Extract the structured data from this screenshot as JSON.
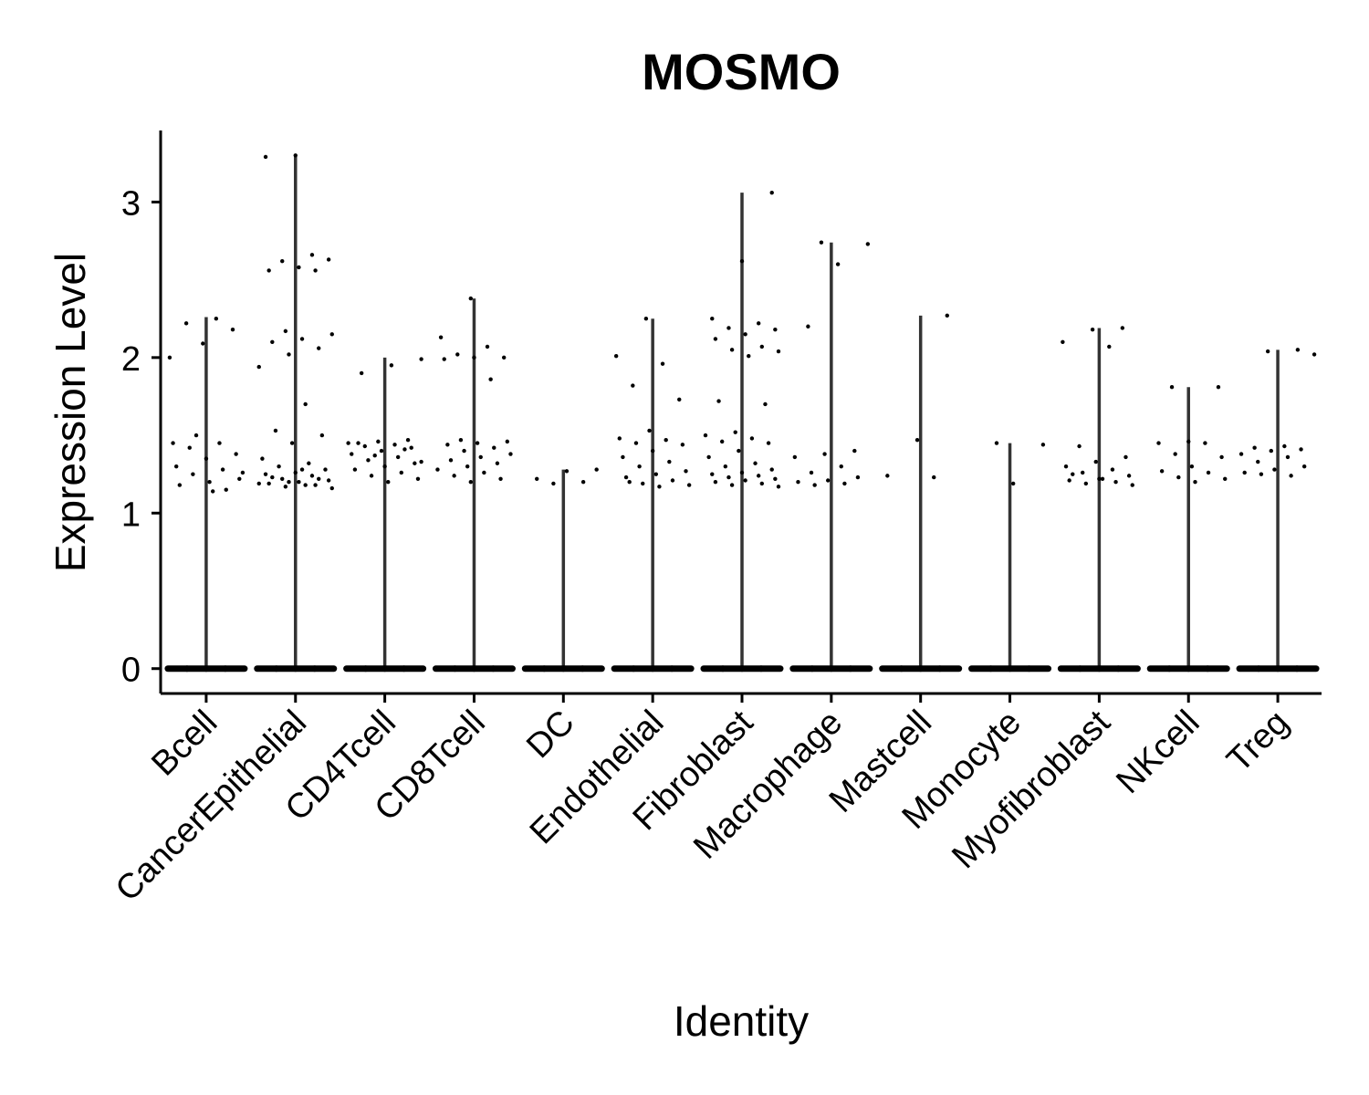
{
  "chart_data": {
    "type": "violin",
    "title": "MOSMO",
    "x_label": "Identity",
    "y_label": "Expression Level",
    "categories": [
      "Bcell",
      "CancerEpithelial",
      "CD4Tcell",
      "CD8Tcell",
      "DC",
      "Endothelial",
      "Fibroblast",
      "Macrophage",
      "Mastcell",
      "Monocyte",
      "Myofibroblast",
      "NKcell",
      "Treg"
    ],
    "values": [
      2.26,
      3.3,
      2.0,
      2.38,
      1.28,
      2.25,
      3.06,
      2.74,
      2.27,
      1.45,
      2.19,
      1.81,
      2.05
    ],
    "points": [
      [
        2.0,
        2.25,
        2.22,
        2.18,
        2.09,
        1.45,
        1.45,
        1.42,
        1.38,
        1.35,
        1.3,
        1.28,
        1.25,
        1.22,
        1.2,
        1.18,
        1.15,
        1.5,
        1.26,
        1.14,
        0,
        0,
        0,
        0
      ],
      [
        3.3,
        3.29,
        2.66,
        2.62,
        2.63,
        2.58,
        2.56,
        2.56,
        2.17,
        2.15,
        2.12,
        2.1,
        2.06,
        2.02,
        1.94,
        1.7,
        1.53,
        1.5,
        1.45,
        1.35,
        1.32,
        1.3,
        1.28,
        1.26,
        1.25,
        1.24,
        1.22,
        1.21,
        1.2,
        1.19,
        1.18,
        1.17,
        1.16,
        1.28,
        1.23,
        1.22,
        1.2,
        1.19,
        1.18,
        0,
        0,
        0,
        0
      ],
      [
        1.99,
        1.95,
        1.9,
        1.47,
        1.46,
        1.45,
        1.44,
        1.43,
        1.42,
        1.4,
        1.38,
        1.36,
        1.34,
        1.32,
        1.3,
        1.28,
        1.26,
        1.24,
        1.22,
        1.2,
        1.45,
        1.41,
        1.37,
        1.33,
        0,
        0,
        0,
        0
      ],
      [
        2.38,
        2.13,
        2.07,
        2.02,
        2.0,
        2.0,
        1.99,
        1.86,
        1.47,
        1.46,
        1.45,
        1.44,
        1.42,
        1.4,
        1.38,
        1.36,
        1.34,
        1.32,
        1.3,
        1.28,
        1.26,
        1.24,
        1.22,
        1.2,
        0,
        0,
        0,
        0
      ],
      [
        1.28,
        1.27,
        1.22,
        1.2,
        1.19,
        0,
        0,
        0,
        0
      ],
      [
        2.25,
        2.01,
        1.96,
        1.82,
        1.73,
        1.53,
        1.48,
        1.47,
        1.45,
        1.44,
        1.4,
        1.36,
        1.33,
        1.3,
        1.27,
        1.25,
        1.23,
        1.21,
        1.19,
        1.18,
        1.17,
        1.2,
        0,
        0,
        0,
        0
      ],
      [
        3.06,
        2.62,
        2.25,
        2.22,
        2.19,
        2.18,
        2.15,
        2.12,
        2.07,
        2.05,
        2.04,
        2.01,
        1.72,
        1.7,
        1.52,
        1.5,
        1.48,
        1.46,
        1.45,
        1.4,
        1.36,
        1.32,
        1.3,
        1.28,
        1.26,
        1.25,
        1.24,
        1.23,
        1.22,
        1.21,
        1.2,
        1.19,
        1.18,
        1.17,
        0,
        0,
        0,
        0
      ],
      [
        2.74,
        2.73,
        2.6,
        2.2,
        1.4,
        1.38,
        1.36,
        1.3,
        1.26,
        1.23,
        1.21,
        1.2,
        1.19,
        1.18,
        0,
        0,
        0,
        0
      ],
      [
        2.27,
        1.47,
        1.24,
        1.23,
        0,
        0,
        0,
        0
      ],
      [
        1.45,
        1.44,
        1.19,
        0,
        0,
        0,
        0
      ],
      [
        2.19,
        2.18,
        2.1,
        2.07,
        1.43,
        1.36,
        1.33,
        1.3,
        1.28,
        1.26,
        1.24,
        1.22,
        1.21,
        1.2,
        1.19,
        1.18,
        1.22,
        1.25,
        0,
        0,
        0,
        0
      ],
      [
        1.81,
        1.81,
        1.46,
        1.45,
        1.45,
        1.38,
        1.36,
        1.3,
        1.27,
        1.26,
        1.23,
        1.22,
        1.2,
        0,
        0,
        0,
        0
      ],
      [
        2.05,
        2.04,
        2.02,
        1.43,
        1.42,
        1.41,
        1.4,
        1.38,
        1.36,
        1.33,
        1.3,
        1.28,
        1.26,
        1.24,
        1.25,
        0,
        0,
        0,
        0
      ]
    ],
    "violin_color": "#333333",
    "point_color": "#000000",
    "ylim": [
      -0.16,
      3.46
    ],
    "yticks": [
      0,
      1,
      2,
      3
    ]
  }
}
